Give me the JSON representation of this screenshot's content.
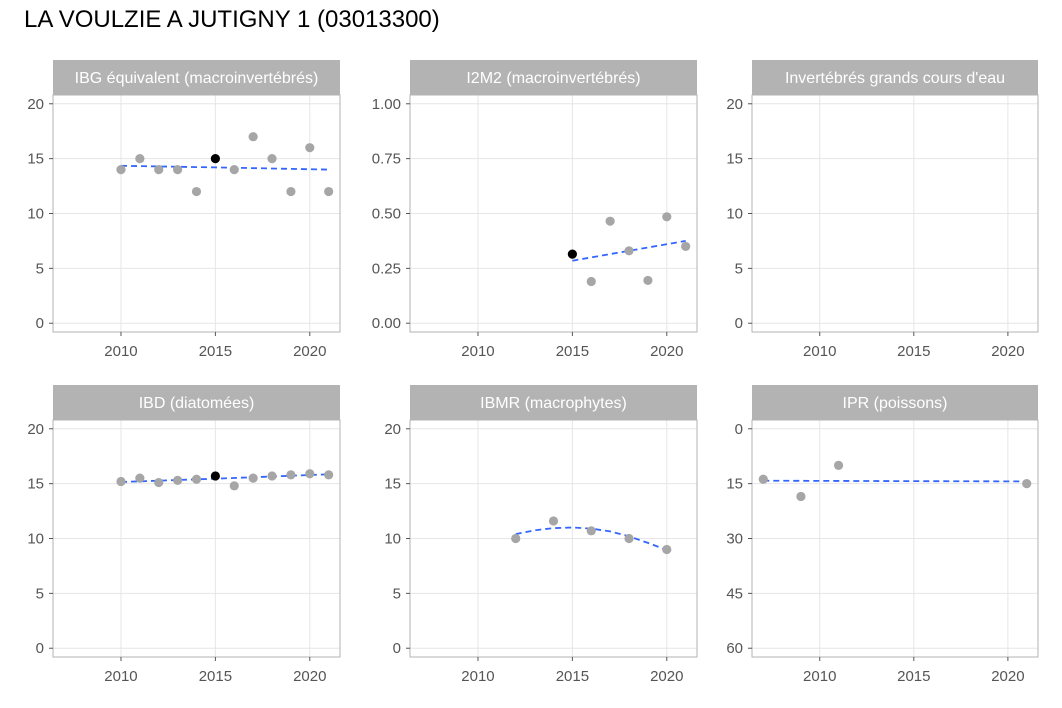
{
  "title": "LA VOULZIE A JUTIGNY 1 (03013300)",
  "colors": {
    "point": "#a6a6a6",
    "point_highlight": "#000000",
    "trend": "#3366ff",
    "strip": "#b3b3b3",
    "grid": "#e6e6e6",
    "panel_border": "#b3b3b3"
  },
  "chart_data": [
    {
      "type": "scatter",
      "title": "IBG équivalent (macroinvertébrés)",
      "xlim": [
        2006.4,
        2021.6
      ],
      "xticks": [
        2010,
        2015,
        2020
      ],
      "ylim": [
        -0.8,
        20.8
      ],
      "yticks": [
        0,
        5,
        10,
        15,
        20
      ],
      "ytick_labels": [
        "0",
        "5",
        "10",
        "15",
        "20"
      ],
      "y_reversed": false,
      "grid": true,
      "points": [
        {
          "x": 2010,
          "y": 14
        },
        {
          "x": 2011,
          "y": 15
        },
        {
          "x": 2012,
          "y": 14
        },
        {
          "x": 2013,
          "y": 14
        },
        {
          "x": 2014,
          "y": 12
        },
        {
          "x": 2015,
          "y": 15,
          "highlight": true
        },
        {
          "x": 2016,
          "y": 14
        },
        {
          "x": 2017,
          "y": 17
        },
        {
          "x": 2018,
          "y": 15
        },
        {
          "x": 2019,
          "y": 12
        },
        {
          "x": 2020,
          "y": 16
        },
        {
          "x": 2021,
          "y": 12
        }
      ],
      "trend": [
        {
          "x": 2010,
          "y": 14.35
        },
        {
          "x": 2015,
          "y": 14.2
        },
        {
          "x": 2021,
          "y": 14.0
        }
      ]
    },
    {
      "type": "scatter",
      "title": "I2M2 (macroinvertébrés)",
      "xlim": [
        2006.4,
        2021.6
      ],
      "xticks": [
        2010,
        2015,
        2020
      ],
      "ylim": [
        -0.04,
        1.04
      ],
      "yticks": [
        0,
        0.25,
        0.5,
        0.75,
        1
      ],
      "ytick_labels": [
        "0.00",
        "0.25",
        "0.50",
        "0.75",
        "1.00"
      ],
      "y_reversed": false,
      "grid": true,
      "points": [
        {
          "x": 2015,
          "y": 0.315,
          "highlight": true
        },
        {
          "x": 2016,
          "y": 0.19
        },
        {
          "x": 2017,
          "y": 0.465
        },
        {
          "x": 2018,
          "y": 0.33
        },
        {
          "x": 2019,
          "y": 0.195
        },
        {
          "x": 2020,
          "y": 0.485
        },
        {
          "x": 2021,
          "y": 0.35
        }
      ],
      "trend": [
        {
          "x": 2015,
          "y": 0.285
        },
        {
          "x": 2021,
          "y": 0.375
        }
      ]
    },
    {
      "type": "scatter",
      "title": "Invertébrés grands cours d'eau",
      "xlim": [
        2006.4,
        2021.6
      ],
      "xticks": [
        2010,
        2015,
        2020
      ],
      "ylim": [
        -0.8,
        20.8
      ],
      "yticks": [
        0,
        5,
        10,
        15,
        20
      ],
      "ytick_labels": [
        "0",
        "5",
        "10",
        "15",
        "20"
      ],
      "y_reversed": false,
      "grid": true,
      "points": [],
      "trend": []
    },
    {
      "type": "scatter",
      "title": "IBD (diatomées)",
      "xlim": [
        2006.4,
        2021.6
      ],
      "xticks": [
        2010,
        2015,
        2020
      ],
      "ylim": [
        -0.8,
        20.8
      ],
      "yticks": [
        0,
        5,
        10,
        15,
        20
      ],
      "ytick_labels": [
        "0",
        "5",
        "10",
        "15",
        "20"
      ],
      "y_reversed": false,
      "grid": true,
      "points": [
        {
          "x": 2010,
          "y": 15.2
        },
        {
          "x": 2011,
          "y": 15.5
        },
        {
          "x": 2012,
          "y": 15.1
        },
        {
          "x": 2013,
          "y": 15.3
        },
        {
          "x": 2014,
          "y": 15.4
        },
        {
          "x": 2015,
          "y": 15.7,
          "highlight": true
        },
        {
          "x": 2016,
          "y": 14.8
        },
        {
          "x": 2017,
          "y": 15.5
        },
        {
          "x": 2018,
          "y": 15.7
        },
        {
          "x": 2019,
          "y": 15.8
        },
        {
          "x": 2020,
          "y": 15.9
        },
        {
          "x": 2021,
          "y": 15.8
        }
      ],
      "trend": [
        {
          "x": 2010,
          "y": 15.15
        },
        {
          "x": 2015,
          "y": 15.45
        },
        {
          "x": 2021,
          "y": 15.85
        }
      ]
    },
    {
      "type": "scatter",
      "title": "IBMR (macrophytes)",
      "xlim": [
        2006.4,
        2021.6
      ],
      "xticks": [
        2010,
        2015,
        2020
      ],
      "ylim": [
        -0.8,
        20.8
      ],
      "yticks": [
        0,
        5,
        10,
        15,
        20
      ],
      "ytick_labels": [
        "0",
        "5",
        "10",
        "15",
        "20"
      ],
      "y_reversed": false,
      "grid": true,
      "points": [
        {
          "x": 2012,
          "y": 10
        },
        {
          "x": 2014,
          "y": 11.6
        },
        {
          "x": 2016,
          "y": 10.7
        },
        {
          "x": 2018,
          "y": 10
        },
        {
          "x": 2020,
          "y": 9
        }
      ],
      "trend": [
        {
          "x": 2012,
          "y": 10.4
        },
        {
          "x": 2013,
          "y": 10.75
        },
        {
          "x": 2014,
          "y": 10.95
        },
        {
          "x": 2015,
          "y": 11.0
        },
        {
          "x": 2016,
          "y": 10.9
        },
        {
          "x": 2017,
          "y": 10.65
        },
        {
          "x": 2018,
          "y": 10.2
        },
        {
          "x": 2019,
          "y": 9.6
        },
        {
          "x": 2020,
          "y": 8.95
        }
      ]
    },
    {
      "type": "scatter",
      "title": "IPR (poissons)",
      "xlim": [
        2006.4,
        2021.6
      ],
      "xticks": [
        2010,
        2015,
        2020
      ],
      "ylim": [
        -2.4,
        62.4
      ],
      "yticks": [
        0,
        15,
        30,
        45,
        60
      ],
      "ytick_labels": [
        "0",
        "15",
        "30",
        "45",
        "60"
      ],
      "y_reversed": true,
      "grid": true,
      "points": [
        {
          "x": 2007,
          "y": 13.8
        },
        {
          "x": 2009,
          "y": 18.5
        },
        {
          "x": 2011,
          "y": 10
        },
        {
          "x": 2021,
          "y": 15
        }
      ],
      "trend": [
        {
          "x": 2007,
          "y": 14.2
        },
        {
          "x": 2014,
          "y": 14.3
        },
        {
          "x": 2021,
          "y": 14.4
        }
      ]
    }
  ]
}
